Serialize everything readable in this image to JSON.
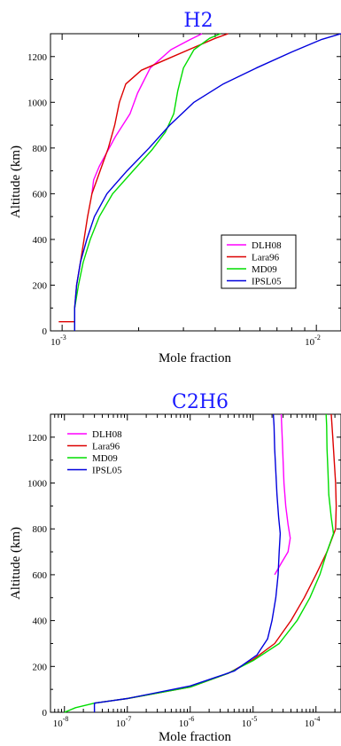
{
  "chart_data": [
    {
      "type": "line",
      "title": "H2",
      "xlabel": "Mole fraction",
      "ylabel": "Altitude (km)",
      "xscale": "log",
      "xlim": [
        0.0009,
        0.0125
      ],
      "ylim": [
        0,
        1300
      ],
      "grid": false,
      "legend_position": "bottom-right",
      "xticks": [
        {
          "value": 0.001,
          "base": "10",
          "exp": "-3"
        },
        {
          "value": 0.01,
          "base": "10",
          "exp": "-2"
        }
      ],
      "yticks": [
        "0",
        "200",
        "400",
        "600",
        "800",
        "1000",
        "1200"
      ],
      "series": [
        {
          "name": "DLH08",
          "color": "#ff00ff",
          "points": [
            [
              0.00131,
              600
            ],
            [
              0.00133,
              660
            ],
            [
              0.0014,
              720
            ],
            [
              0.00162,
              850
            ],
            [
              0.00185,
              950
            ],
            [
              0.00198,
              1040
            ],
            [
              0.00222,
              1150
            ],
            [
              0.00268,
              1230
            ],
            [
              0.0032,
              1275
            ],
            [
              0.00355,
              1300
            ]
          ]
        },
        {
          "name": "Lara96",
          "color": "#dd0000",
          "points": [
            [
              0.00097,
              40
            ],
            [
              0.00112,
              40
            ],
            [
              0.00112,
              100
            ],
            [
              0.00114,
              200
            ],
            [
              0.00118,
              300
            ],
            [
              0.00122,
              400
            ],
            [
              0.00126,
              500
            ],
            [
              0.00131,
              600
            ],
            [
              0.00141,
              700
            ],
            [
              0.00152,
              800
            ],
            [
              0.00161,
              900
            ],
            [
              0.00168,
              1000
            ],
            [
              0.00178,
              1080
            ],
            [
              0.00205,
              1140
            ],
            [
              0.0026,
              1190
            ],
            [
              0.0033,
              1240
            ],
            [
              0.004,
              1280
            ],
            [
              0.0045,
              1300
            ]
          ]
        },
        {
          "name": "MD09",
          "color": "#00dd00",
          "points": [
            [
              0.00112,
              0
            ],
            [
              0.00112,
              100
            ],
            [
              0.00116,
              200
            ],
            [
              0.00121,
              300
            ],
            [
              0.00129,
              400
            ],
            [
              0.0014,
              500
            ],
            [
              0.00158,
              600
            ],
            [
              0.0019,
              700
            ],
            [
              0.00225,
              790
            ],
            [
              0.00255,
              870
            ],
            [
              0.00275,
              950
            ],
            [
              0.00285,
              1050
            ],
            [
              0.003,
              1150
            ],
            [
              0.0033,
              1230
            ],
            [
              0.0038,
              1280
            ],
            [
              0.0042,
              1300
            ]
          ]
        },
        {
          "name": "IPSL05",
          "color": "#0000dd",
          "points": [
            [
              0.00112,
              0
            ],
            [
              0.00112,
              100
            ],
            [
              0.00114,
              200
            ],
            [
              0.00118,
              300
            ],
            [
              0.00125,
              400
            ],
            [
              0.00134,
              500
            ],
            [
              0.0015,
              600
            ],
            [
              0.0018,
              700
            ],
            [
              0.0022,
              800
            ],
            [
              0.00265,
              900
            ],
            [
              0.0033,
              1000
            ],
            [
              0.0043,
              1080
            ],
            [
              0.0058,
              1150
            ],
            [
              0.008,
              1220
            ],
            [
              0.0105,
              1275
            ],
            [
              0.0125,
              1300
            ]
          ]
        }
      ]
    },
    {
      "type": "line",
      "title": "C2H6",
      "xlabel": "Mole fraction",
      "ylabel": "Altitude (km)",
      "xscale": "log",
      "xlim": [
        6e-09,
        0.00025
      ],
      "ylim": [
        0,
        1300
      ],
      "grid": false,
      "legend_position": "top-left",
      "xticks": [
        {
          "value": 1e-08,
          "base": "10",
          "exp": "-8"
        },
        {
          "value": 1e-07,
          "base": "10",
          "exp": "-7"
        },
        {
          "value": 1e-06,
          "base": "10",
          "exp": "-6"
        },
        {
          "value": 1e-05,
          "base": "10",
          "exp": "-5"
        },
        {
          "value": 0.0001,
          "base": "10",
          "exp": "-4"
        }
      ],
      "yticks": [
        "0",
        "200",
        "400",
        "600",
        "800",
        "1000",
        "1200"
      ],
      "series": [
        {
          "name": "DLH08",
          "color": "#ff00ff",
          "points": [
            [
              2.2e-05,
              600
            ],
            [
              2.8e-05,
              650
            ],
            [
              3.6e-05,
              700
            ],
            [
              3.9e-05,
              760
            ],
            [
              3.6e-05,
              820
            ],
            [
              3.3e-05,
              900
            ],
            [
              3.1e-05,
              1000
            ],
            [
              3e-05,
              1100
            ],
            [
              2.9e-05,
              1200
            ],
            [
              2.8e-05,
              1300
            ]
          ]
        },
        {
          "name": "Lara96",
          "color": "#dd0000",
          "points": [
            [
              3e-08,
              40
            ],
            [
              1e-07,
              60
            ],
            [
              1e-06,
              110
            ],
            [
              4e-06,
              170
            ],
            [
              1e-05,
              230
            ],
            [
              2.2e-05,
              300
            ],
            [
              4e-05,
              400
            ],
            [
              6.5e-05,
              500
            ],
            [
              0.0001,
              600
            ],
            [
              0.00015,
              700
            ],
            [
              0.000205,
              800
            ],
            [
              0.00021,
              900
            ],
            [
              0.000205,
              1000
            ],
            [
              0.000195,
              1100
            ],
            [
              0.000185,
              1200
            ],
            [
              0.000175,
              1300
            ]
          ]
        },
        {
          "name": "MD09",
          "color": "#00dd00",
          "points": [
            [
              1e-08,
              0
            ],
            [
              1.5e-08,
              20
            ],
            [
              3e-08,
              40
            ],
            [
              1e-07,
              60
            ],
            [
              1e-06,
              110
            ],
            [
              4e-06,
              170
            ],
            [
              1e-05,
              225
            ],
            [
              2.6e-05,
              300
            ],
            [
              5e-05,
              400
            ],
            [
              8e-05,
              500
            ],
            [
              0.000115,
              600
            ],
            [
              0.00015,
              700
            ],
            [
              0.00019,
              780
            ],
            [
              0.000175,
              850
            ],
            [
              0.00016,
              950
            ],
            [
              0.000155,
              1050
            ],
            [
              0.00015,
              1150
            ],
            [
              0.000148,
              1250
            ],
            [
              0.000145,
              1300
            ]
          ]
        },
        {
          "name": "IPSL05",
          "color": "#0000dd",
          "points": [
            [
              3e-08,
              0
            ],
            [
              3e-08,
              40
            ],
            [
              1e-07,
              60
            ],
            [
              1e-06,
              115
            ],
            [
              5e-06,
              180
            ],
            [
              1.15e-05,
              250
            ],
            [
              1.7e-05,
              320
            ],
            [
              2e-05,
              400
            ],
            [
              2.3e-05,
              500
            ],
            [
              2.5e-05,
              600
            ],
            [
              2.6e-05,
              700
            ],
            [
              2.7e-05,
              780
            ],
            [
              2.55e-05,
              850
            ],
            [
              2.4e-05,
              950
            ],
            [
              2.3e-05,
              1050
            ],
            [
              2.2e-05,
              1150
            ],
            [
              2.15e-05,
              1250
            ],
            [
              2.1e-05,
              1300
            ]
          ]
        }
      ]
    }
  ]
}
